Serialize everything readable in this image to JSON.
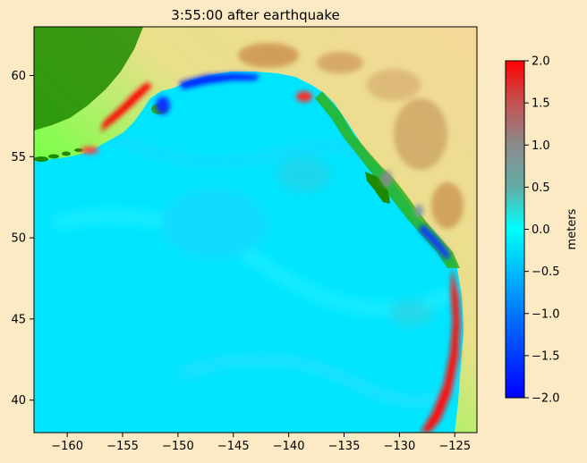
{
  "chart_data": {
    "type": "heatmap",
    "title": "3:55:00 after earthquake",
    "xlabel": "",
    "ylabel": "",
    "xlim": [
      -163,
      -123
    ],
    "ylim": [
      38,
      63
    ],
    "x_ticks": [
      -160,
      -155,
      -150,
      -145,
      -140,
      -135,
      -130,
      -125
    ],
    "y_ticks": [
      40,
      45,
      50,
      55,
      60
    ],
    "x_tick_labels": [
      "−160",
      "−155",
      "−150",
      "−145",
      "−140",
      "−135",
      "−130",
      "−125"
    ],
    "y_tick_labels": [
      "40",
      "45",
      "50",
      "55",
      "60"
    ],
    "colorbar": {
      "label": "meters",
      "vmin": -2.0,
      "vmax": 2.0,
      "ticks": [
        2.0,
        1.5,
        1.0,
        0.5,
        0.0,
        -0.5,
        -1.0,
        -1.5,
        -2.0
      ],
      "tick_labels": [
        "2.0",
        "1.5",
        "1.0",
        "0.5",
        "0.0",
        "−0.5",
        "−1.0",
        "−1.5",
        "−2.0"
      ],
      "colors": [
        "#0000ff",
        "#0077ff",
        "#00ffff",
        "#5fb0a8",
        "#8a8a8a",
        "#c75050",
        "#ff0000"
      ]
    },
    "colors": {
      "background": "#fbeac3",
      "ocean": "#00e5ff",
      "land_low": "#1d8a00",
      "land_mid": "#7cff4a",
      "land_high": "#f0d890",
      "mountain": "#c98a4a"
    },
    "features": [
      {
        "name": "positive wave along Alaska Peninsula / Shelikof",
        "lon": -154.5,
        "lat": 57.5,
        "value": 2.0
      },
      {
        "name": "positive wave near Yakutat",
        "lon": -138.8,
        "lat": 58.6,
        "value": 1.8
      },
      {
        "name": "positive wave along Oregon/California coast",
        "lon": -124.8,
        "lat": 44.0,
        "value": 2.0
      },
      {
        "name": "negative wave along Gulf of Alaska coast",
        "lon": -147.0,
        "lat": 59.8,
        "value": -1.8
      },
      {
        "name": "negative wave near Kodiak",
        "lon": -152.5,
        "lat": 57.8,
        "value": -1.5
      },
      {
        "name": "negative wave off Washington",
        "lon": -125.5,
        "lat": 49.0,
        "value": -1.2
      }
    ]
  }
}
